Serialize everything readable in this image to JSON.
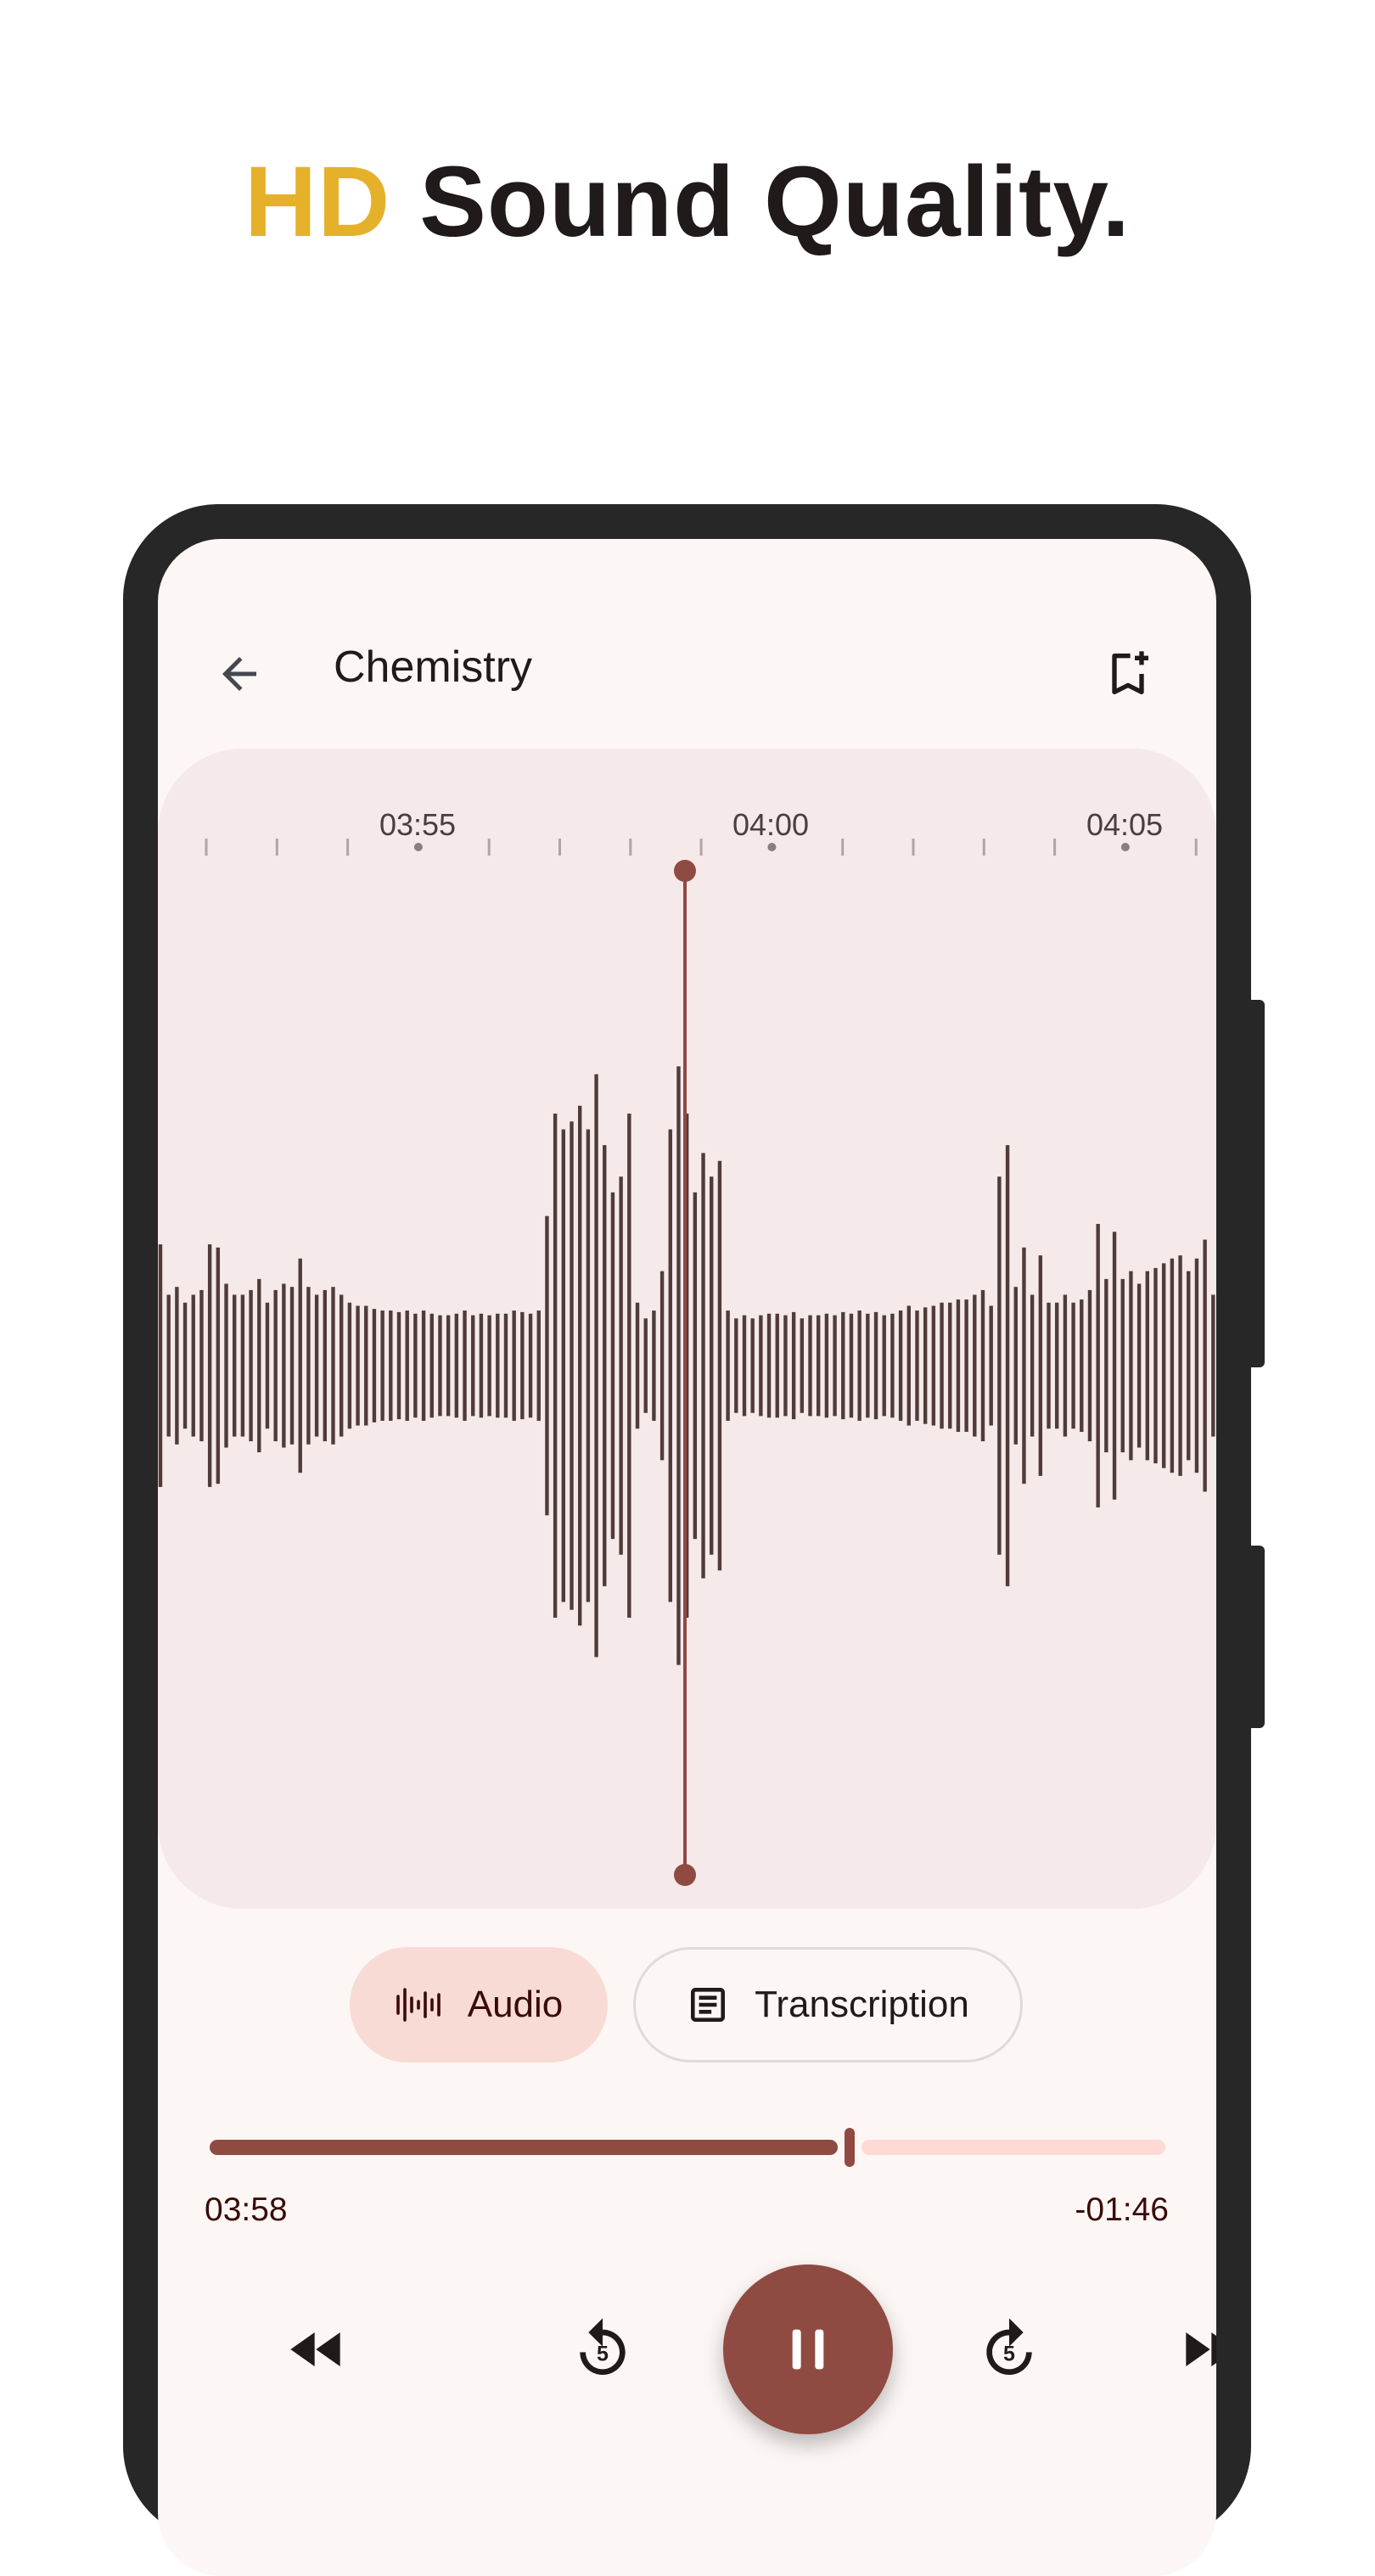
{
  "headline": {
    "highlight": "HD",
    "rest": " Sound Quality."
  },
  "toolbar": {
    "title": "Chemistry",
    "back_icon": "arrow-back-icon",
    "bookmark_icon": "bookmark-add-icon",
    "more_icon": "more-vert-icon"
  },
  "timeline": {
    "labels": [
      "03:55",
      "04:00",
      "04:05"
    ]
  },
  "waveform": {
    "amplitudes": [
      77,
      45,
      50,
      40,
      45,
      48,
      77,
      75,
      52,
      45,
      45,
      48,
      55,
      40,
      48,
      52,
      50,
      68,
      50,
      45,
      48,
      50,
      45,
      40,
      38,
      38,
      36,
      35,
      35,
      34,
      35,
      33,
      35,
      33,
      32,
      32,
      33,
      35,
      32,
      33,
      32,
      33,
      33,
      35,
      34,
      33,
      35,
      95,
      160,
      150,
      155,
      165,
      150,
      185,
      140,
      110,
      120,
      160,
      40,
      30,
      35,
      60,
      150,
      190,
      160,
      110,
      135,
      120,
      130,
      35,
      30,
      32,
      30,
      32,
      33,
      33,
      32,
      34,
      30,
      32,
      32,
      33,
      32,
      34,
      33,
      35,
      33,
      34,
      32,
      33,
      35,
      38,
      35,
      37,
      38,
      40,
      40,
      42,
      42,
      45,
      48,
      38,
      120,
      140,
      50,
      75,
      45,
      70,
      40,
      40,
      45,
      40,
      42,
      48,
      90,
      55,
      85,
      55,
      60,
      52,
      60,
      62,
      65,
      68,
      70,
      60,
      68,
      80,
      45
    ]
  },
  "tabs": [
    {
      "label": "Audio",
      "icon": "waveform-icon",
      "selected": true
    },
    {
      "label": "Transcription",
      "icon": "article-icon",
      "selected": false
    }
  ],
  "player": {
    "elapsed": "03:58",
    "remaining": "-01:46",
    "progress": 0.67,
    "state": "playing"
  },
  "colors": {
    "accent": "#8f4a42",
    "highlight": "#e6b12a",
    "panel": "#f5e9e9",
    "track_inactive": "#ffdad5",
    "pill_selected": "#f9dbd6"
  }
}
